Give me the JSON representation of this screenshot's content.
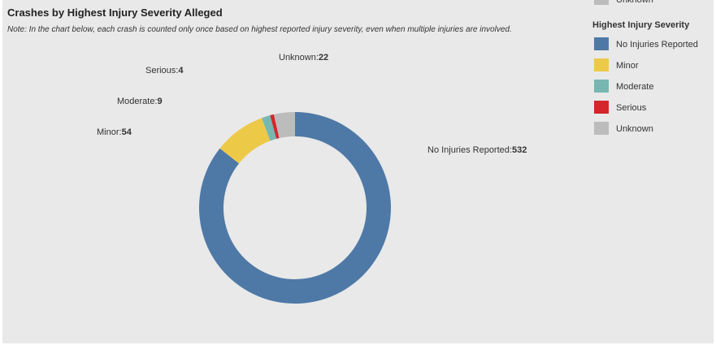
{
  "chart_data": {
    "type": "donut",
    "title": "Crashes by Highest Injury Severity Alleged",
    "subtitle": "Note: In the chart below, each crash is counted only once based on highest reported injury severity, even when multiple injuries are involved.",
    "legend_title": "Highest Injury Severity",
    "legend_position": "right",
    "label_separator": ":",
    "categories": [
      "No Injuries Reported",
      "Minor",
      "Moderate",
      "Serious",
      "Unknown"
    ],
    "values": [
      532,
      54,
      9,
      4,
      22
    ],
    "colors": [
      "#4e79a7",
      "#edc948",
      "#76b7b2",
      "#d3272b",
      "#bcbcbc"
    ]
  }
}
